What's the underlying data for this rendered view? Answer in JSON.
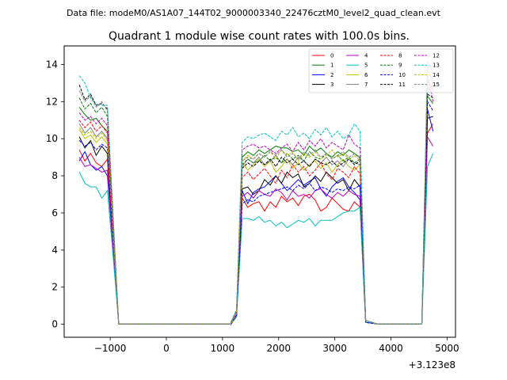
{
  "header": {
    "datafile": "Data file: modeM0/AS1A07_144T02_9000003340_22476cztM0_level2_quad_clean.evt"
  },
  "chart_data": {
    "type": "line",
    "title": "Quadrant 1 module wise count rates with 100.0s bins.",
    "xlabel": "",
    "ylabel": "",
    "offset_text": "+3.123e8",
    "xlim": [
      -1820,
      5150
    ],
    "ylim": [
      -0.7,
      15.0
    ],
    "xticks": [
      -1000,
      0,
      1000,
      2000,
      3000,
      4000,
      5000
    ],
    "xtick_labels": [
      "−1000",
      "0",
      "1000",
      "2000",
      "3000",
      "4000",
      "5000"
    ],
    "yticks": [
      0,
      2,
      4,
      6,
      8,
      10,
      12,
      14
    ],
    "ytick_labels": [
      "0",
      "2",
      "4",
      "6",
      "8",
      "10",
      "12",
      "14"
    ],
    "grid": false,
    "legend_position": "top-right",
    "segments": [
      {
        "start": -1550,
        "step": 100,
        "count": 8
      },
      {
        "start": 1150,
        "step": 100,
        "count": 25
      },
      {
        "start": 4650,
        "step": 100,
        "count": 2
      }
    ],
    "flat_zero": [
      [
        -850,
        1150
      ],
      [
        3750,
        4550
      ]
    ],
    "series": [
      {
        "name": "0",
        "color": "#ff0000",
        "dash": false,
        "a": [
          9.4,
          8.8,
          9.2,
          8.7,
          8.5,
          8.9,
          4.4,
          0.1
        ],
        "b": [
          0.0,
          0.4,
          6.8,
          6.3,
          6.5,
          6.6,
          6.1,
          6.6,
          6.3,
          6.9,
          6.6,
          6.8,
          6.4,
          6.9,
          7.0,
          6.7,
          6.1,
          6.3,
          6.8,
          6.5,
          6.2,
          6.1,
          6.6,
          6.3,
          0.1
        ],
        "c": [
          10.3,
          10.8
        ]
      },
      {
        "name": "1",
        "color": "#008000",
        "dash": false,
        "a": [
          11.7,
          11.3,
          11.0,
          11.1,
          10.7,
          10.4,
          5.2,
          0.1
        ],
        "b": [
          0.1,
          0.6,
          9.0,
          9.3,
          9.1,
          9.4,
          9.2,
          9.4,
          9.6,
          9.5,
          9.5,
          9.3,
          9.4,
          9.1,
          9.6,
          9.3,
          9.5,
          9.2,
          9.0,
          9.3,
          9.1,
          9.4,
          9.2,
          9.0,
          0.2
        ],
        "c": [
          12.3,
          11.9
        ]
      },
      {
        "name": "2",
        "color": "#0000ff",
        "dash": false,
        "a": [
          8.8,
          9.3,
          8.6,
          8.3,
          8.5,
          8.0,
          4.1,
          0.1
        ],
        "b": [
          0.0,
          0.5,
          7.2,
          6.5,
          7.1,
          7.3,
          7.4,
          7.7,
          8.0,
          7.6,
          7.2,
          7.5,
          7.8,
          7.5,
          7.7,
          7.9,
          7.3,
          6.9,
          7.4,
          7.7,
          7.9,
          7.4,
          7.1,
          6.7,
          0.1
        ],
        "c": [
          11.6,
          10.4
        ]
      },
      {
        "name": "3",
        "color": "#000000",
        "dash": false,
        "a": [
          10.1,
          9.5,
          9.9,
          9.1,
          9.6,
          9.2,
          4.7,
          0.1
        ],
        "b": [
          0.0,
          0.5,
          7.3,
          7.4,
          7.0,
          7.2,
          7.8,
          7.5,
          8.0,
          7.6,
          8.2,
          7.9,
          8.1,
          7.4,
          7.6,
          8.0,
          7.7,
          8.2,
          7.9,
          7.6,
          7.8,
          7.2,
          7.8,
          7.4,
          0.1
        ],
        "c": [
          11.1,
          11.2
        ]
      },
      {
        "name": "4",
        "color": "#bf00bf",
        "dash": false,
        "a": [
          9.0,
          8.5,
          8.6,
          8.4,
          8.2,
          8.3,
          4.2,
          0.1
        ],
        "b": [
          0.0,
          0.5,
          6.9,
          7.1,
          6.8,
          7.2,
          7.0,
          6.9,
          7.3,
          7.1,
          6.7,
          7.2,
          6.9,
          7.0,
          6.8,
          7.2,
          7.3,
          7.0,
          6.8,
          7.1,
          6.9,
          7.2,
          7.0,
          6.9,
          0.1
        ],
        "c": [
          10.1,
          9.6
        ]
      },
      {
        "name": "5",
        "color": "#00bfbf",
        "dash": false,
        "a": [
          8.2,
          7.6,
          7.4,
          7.4,
          6.8,
          7.2,
          3.7,
          0.1
        ],
        "b": [
          0.0,
          0.4,
          5.7,
          5.7,
          5.6,
          5.8,
          5.5,
          5.6,
          5.3,
          5.5,
          5.2,
          5.4,
          5.6,
          5.5,
          5.7,
          5.3,
          5.6,
          5.6,
          5.6,
          5.8,
          6.0,
          6.1,
          6.1,
          6.3,
          0.1
        ],
        "c": [
          8.5,
          9.2
        ]
      },
      {
        "name": "6",
        "color": "#bfbf00",
        "dash": false,
        "a": [
          10.5,
          10.0,
          10.2,
          9.8,
          10.1,
          9.7,
          4.9,
          0.1
        ],
        "b": [
          0.0,
          0.6,
          8.7,
          8.3,
          8.6,
          8.9,
          8.5,
          8.8,
          8.2,
          8.5,
          8.9,
          8.4,
          8.7,
          8.3,
          8.6,
          8.8,
          8.4,
          8.7,
          8.2,
          8.6,
          8.9,
          8.5,
          8.3,
          8.6,
          0.2
        ],
        "c": [
          12.5,
          13.0
        ]
      },
      {
        "name": "7",
        "color": "#808080",
        "dash": false,
        "a": [
          10.8,
          10.3,
          10.6,
          10.1,
          10.4,
          10.0,
          5.0,
          0.1
        ],
        "b": [
          0.0,
          0.6,
          8.5,
          8.9,
          8.7,
          9.0,
          8.6,
          8.8,
          9.1,
          8.7,
          8.9,
          8.6,
          9.0,
          8.8,
          8.5,
          8.9,
          8.7,
          9.0,
          8.6,
          8.8,
          8.5,
          8.9,
          8.7,
          8.6,
          0.2
        ],
        "c": [
          13.0,
          13.4
        ]
      },
      {
        "name": "8",
        "color": "#ff0000",
        "dash": true,
        "a": [
          11.0,
          10.6,
          10.9,
          10.4,
          10.7,
          10.3,
          5.1,
          0.1
        ],
        "b": [
          0.0,
          0.6,
          7.9,
          8.2,
          7.8,
          8.1,
          8.4,
          8.0,
          7.6,
          8.3,
          7.9,
          8.6,
          8.2,
          8.5,
          8.0,
          8.3,
          8.7,
          8.1,
          7.8,
          8.4,
          8.2,
          7.9,
          8.5,
          8.1,
          0.2
        ],
        "c": [
          13.2,
          12.6
        ]
      },
      {
        "name": "9",
        "color": "#008000",
        "dash": true,
        "a": [
          12.2,
          11.6,
          11.9,
          11.4,
          11.7,
          11.2,
          5.6,
          0.1
        ],
        "b": [
          0.1,
          0.7,
          8.6,
          8.9,
          8.7,
          8.8,
          9.1,
          8.8,
          9.0,
          8.7,
          9.2,
          8.9,
          9.1,
          8.8,
          9.3,
          9.0,
          8.9,
          9.2,
          8.9,
          9.1,
          8.8,
          9.0,
          8.7,
          8.9,
          0.2
        ],
        "c": [
          12.8,
          12.4
        ]
      },
      {
        "name": "10",
        "color": "#0000ff",
        "dash": true,
        "a": [
          9.9,
          9.6,
          9.8,
          9.4,
          9.7,
          9.5,
          4.8,
          0.1
        ],
        "b": [
          0.0,
          0.5,
          6.5,
          6.7,
          6.6,
          6.9,
          7.0,
          7.1,
          7.2,
          7.3,
          7.4,
          7.2,
          7.5,
          7.3,
          7.6,
          7.2,
          7.4,
          7.3,
          7.1,
          7.3,
          7.2,
          7.4,
          7.3,
          7.5,
          0.1
        ],
        "c": [
          12.0,
          11.5
        ]
      },
      {
        "name": "11",
        "color": "#000000",
        "dash": true,
        "a": [
          12.9,
          12.1,
          12.4,
          11.8,
          11.9,
          11.6,
          5.8,
          0.1
        ],
        "b": [
          0.1,
          0.7,
          8.4,
          8.7,
          8.5,
          8.8,
          8.6,
          8.9,
          8.5,
          9.0,
          8.7,
          8.9,
          8.6,
          8.8,
          8.5,
          8.9,
          8.7,
          8.6,
          8.8,
          8.5,
          8.7,
          8.9,
          8.6,
          8.8,
          0.2
        ],
        "c": [
          12.4,
          12.2
        ]
      },
      {
        "name": "12",
        "color": "#bf00bf",
        "dash": true,
        "a": [
          11.4,
          11.0,
          11.2,
          10.8,
          11.1,
          10.7,
          5.4,
          0.1
        ],
        "b": [
          0.0,
          0.7,
          9.4,
          9.6,
          9.7,
          9.5,
          9.6,
          9.4,
          9.2,
          9.5,
          9.7,
          9.3,
          9.8,
          9.4,
          9.9,
          9.6,
          10.0,
          9.5,
          9.8,
          9.6,
          9.4,
          10.2,
          9.7,
          9.5,
          0.2
        ],
        "c": [
          13.4,
          12.0
        ]
      },
      {
        "name": "13",
        "color": "#00bfbf",
        "dash": true,
        "a": [
          13.4,
          13.0,
          12.2,
          11.8,
          11.8,
          11.8,
          5.9,
          0.1
        ],
        "b": [
          0.1,
          0.8,
          9.8,
          10.1,
          10.0,
          10.2,
          10.3,
          10.1,
          9.9,
          10.4,
          10.2,
          10.6,
          10.1,
          10.3,
          10.0,
          10.5,
          10.2,
          10.6,
          10.1,
          10.4,
          10.0,
          10.2,
          10.8,
          10.4,
          0.2
        ],
        "c": [
          14.2,
          13.6
        ]
      },
      {
        "name": "14",
        "color": "#bfbf00",
        "dash": true,
        "a": [
          10.6,
          10.2,
          10.4,
          10.0,
          10.3,
          9.9,
          5.0,
          0.1
        ],
        "b": [
          0.0,
          0.6,
          8.8,
          9.1,
          8.9,
          9.2,
          9.0,
          9.3,
          8.9,
          9.4,
          9.1,
          9.3,
          8.8,
          9.2,
          9.0,
          9.3,
          8.9,
          9.1,
          9.4,
          9.0,
          9.2,
          8.9,
          9.1,
          8.8,
          0.2
        ],
        "c": [
          13.6,
          13.2
        ]
      },
      {
        "name": "15",
        "color": "#808080",
        "dash": true,
        "a": [
          12.6,
          12.0,
          12.3,
          11.7,
          12.0,
          11.5,
          5.7,
          0.1
        ],
        "b": [
          0.1,
          0.7,
          8.8,
          9.0,
          8.9,
          9.2,
          9.0,
          9.3,
          9.1,
          9.4,
          9.0,
          9.2,
          8.9,
          9.3,
          9.1,
          9.4,
          9.0,
          9.2,
          8.9,
          9.1,
          9.3,
          9.0,
          9.2,
          8.9,
          0.2
        ],
        "c": [
          13.9,
          13.0
        ]
      }
    ]
  }
}
